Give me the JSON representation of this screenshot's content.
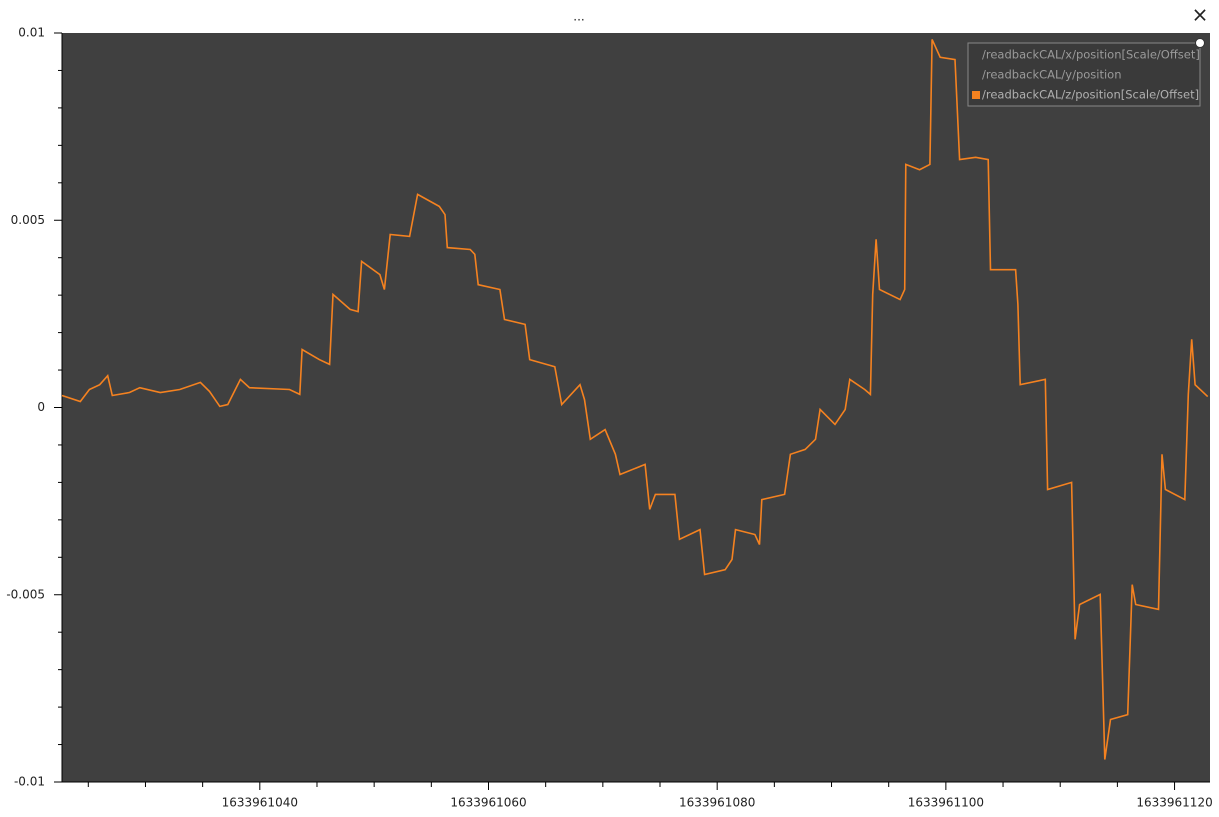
{
  "window": {
    "title": "...",
    "close": "×"
  },
  "chart_data": {
    "type": "line",
    "x": [
      1633961022.7,
      1633961024.3,
      1633961025.1,
      1633961026.0,
      1633961026.7,
      1633961027.1,
      1633961028.6,
      1633961029.5,
      1633961031.3,
      1633961033.0,
      1633961034.8,
      1633961035.6,
      1633961036.5,
      1633961037.2,
      1633961038.3,
      1633961039.1,
      1633961042.6,
      1633961043.5,
      1633961043.7,
      1633961045.2,
      1633961046.1,
      1633961046.4,
      1633961047.9,
      1633961048.6,
      1633961048.9,
      1633961050.5,
      1633961050.9,
      1633961051.4,
      1633961053.1,
      1633961053.8,
      1633961055.7,
      1633961056.2,
      1633961056.4,
      1633961058.4,
      1633961058.8,
      1633961059.1,
      1633961061.0,
      1633961061.4,
      1633961063.2,
      1633961063.6,
      1633961065.8,
      1633961066.4,
      1633961068.0,
      1633961068.4,
      1633961068.9,
      1633961070.2,
      1633961071.1,
      1633961071.5,
      1633961073.7,
      1633961074.1,
      1633961074.6,
      1633961076.3,
      1633961076.7,
      1633961078.5,
      1633961078.9,
      1633961080.7,
      1633961081.3,
      1633961081.6,
      1633961083.3,
      1633961083.7,
      1633961083.9,
      1633961085.9,
      1633961086.4,
      1633961087.7,
      1633961088.6,
      1633961089.0,
      1633961090.3,
      1633961091.2,
      1633961091.6,
      1633961092.9,
      1633961093.4,
      1633961093.6,
      1633961093.9,
      1633961094.2,
      1633961096.0,
      1633961096.4,
      1633961096.5,
      1633961097.7,
      1633961098.6,
      1633961098.8,
      1633961099.5,
      1633961100.8,
      1633961101.2,
      1633961102.6,
      1633961103.7,
      1633961103.9,
      1633961106.1,
      1633961106.3,
      1633961106.5,
      1633961108.7,
      1633961108.9,
      1633961111.0,
      1633961111.3,
      1633961111.7,
      1633961113.5,
      1633961113.9,
      1633961114.4,
      1633961115.9,
      1633961116.3,
      1633961116.6,
      1633961118.6,
      1633961118.9,
      1633961119.2,
      1633961120.9,
      1633961121.2,
      1633961121.5,
      1633961121.8,
      1633961122.9
    ],
    "series": [
      {
        "name": "/readbackCAL/z/position[Scale/Offset]",
        "color": "#f58220",
        "values": [
          0.00032,
          0.00016,
          0.00048,
          0.00061,
          0.00085,
          0.00032,
          0.0004,
          0.00053,
          0.0004,
          0.00048,
          0.00067,
          0.00043,
          3e-05,
          8e-05,
          0.00075,
          0.00053,
          0.00048,
          0.00035,
          0.00155,
          0.00128,
          0.00115,
          0.00302,
          0.00262,
          0.00256,
          0.0039,
          0.00355,
          0.00315,
          0.00462,
          0.00457,
          0.00569,
          0.00537,
          0.00515,
          0.00427,
          0.00422,
          0.00409,
          0.00328,
          0.00315,
          0.00235,
          0.00222,
          0.00128,
          0.00109,
          8e-05,
          0.00061,
          0.00021,
          -0.00085,
          -0.00059,
          -0.00125,
          -0.00179,
          -0.00152,
          -0.00272,
          -0.00232,
          -0.00232,
          -0.00352,
          -0.00326,
          -0.00446,
          -0.00433,
          -0.00406,
          -0.00326,
          -0.00339,
          -0.00366,
          -0.00246,
          -0.00232,
          -0.00125,
          -0.00112,
          -0.00085,
          -5e-05,
          -0.00045,
          -5e-05,
          0.00075,
          0.00048,
          0.00035,
          0.00302,
          0.00449,
          0.00315,
          0.00288,
          0.00315,
          0.00649,
          0.00635,
          0.00649,
          0.00983,
          0.00935,
          0.00929,
          0.00662,
          0.00668,
          0.00662,
          0.00368,
          0.00368,
          0.00275,
          0.00061,
          0.00075,
          -0.00219,
          -0.002,
          -0.00619,
          -0.00526,
          -0.00499,
          -0.0094,
          -0.00833,
          -0.0082,
          -0.00473,
          -0.00526,
          -0.00539,
          -0.00125,
          -0.00219,
          -0.00246,
          0.00035,
          0.00182,
          0.00061,
          0.00029
        ]
      }
    ],
    "hidden_series": [
      "/readbackCAL/x/position[Scale/Offset]",
      "/readbackCAL/y/position"
    ],
    "xlim": [
      1633961022.7,
      1633961123.1
    ],
    "ylim": [
      -0.01,
      0.01
    ],
    "xticks": [
      1633961040,
      1633961060,
      1633961080,
      1633961100,
      1633961120
    ],
    "yticks": [
      -0.01,
      -0.005,
      0,
      0.005,
      0.01
    ],
    "xminorticks": [
      1633961025,
      1633961030,
      1633961035,
      1633961045,
      1633961050,
      1633961055,
      1633961065,
      1633961070,
      1633961075,
      1633961085,
      1633961090,
      1633961095,
      1633961105,
      1633961110,
      1633961115
    ],
    "yminorticks": [
      -0.009,
      -0.008,
      -0.007,
      -0.006,
      -0.004,
      -0.003,
      -0.002,
      -0.001,
      0.001,
      0.002,
      0.003,
      0.004,
      0.006,
      0.007,
      0.008,
      0.009
    ],
    "legend_position": "top-right",
    "background": "#404040"
  }
}
